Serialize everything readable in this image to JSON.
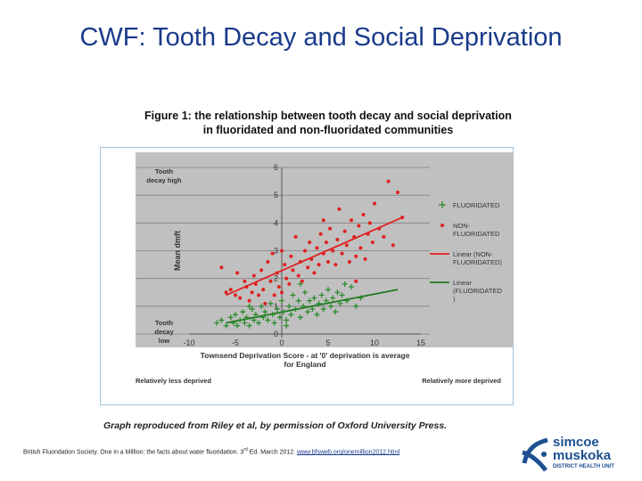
{
  "slide": {
    "title": "CWF: Tooth Decay and Social Deprivation",
    "figure_caption_line1": "Figure 1: the relationship between tooth decay and social deprivation",
    "figure_caption_line2": "in fluoridated and non-fluoridated communities",
    "credit": "Graph reproduced from Riley et al, by permission of Oxford University Press.",
    "source_text": "British Fluoridation Society. One in a Million: the facts about water fluoridation. 3",
    "source_sup": "rd",
    "source_text2": " Ed. March 2012. ",
    "source_link": "www.bfsweb.org/onemillion2012.html"
  },
  "logo": {
    "line1": "simcoe",
    "line2": "muskoka",
    "line3": "DISTRICT HEALTH UNIT",
    "color": "#1d4f91"
  },
  "chart_data": {
    "type": "scatter",
    "xlabel_line1": "Townsend Deprivation Score - at '0' deprivation is average",
    "xlabel_line2": "for England",
    "ylabel": "Mean dmft",
    "xlim": [
      -10,
      15
    ],
    "ylim": [
      0,
      6
    ],
    "xticks": [
      "-10",
      "-5",
      "0",
      "5",
      "10",
      "15"
    ],
    "yticks": [
      "0",
      "1",
      "2",
      "3",
      "4",
      "5",
      "6"
    ],
    "grid": true,
    "background": "#c0c0c0",
    "annotations": {
      "top_left_line1": "Tooth",
      "top_left_line2": "decay high",
      "bottom_left_line1": "Tooth",
      "bottom_left_line2": "decay",
      "bottom_left_line3": "low",
      "less_deprived": "Relatively less deprived",
      "more_deprived": "Relatively more deprived"
    },
    "legend_position": "right",
    "legend": [
      {
        "key": "fluoridated",
        "label_lines": [
          "FLUORIDATED"
        ],
        "color": "#2e8b2e",
        "marker": "plus"
      },
      {
        "key": "non_fluoridated",
        "label_lines": [
          "NON-",
          "FLUORIDATED"
        ],
        "color": "#e02020",
        "marker": "dot"
      },
      {
        "key": "linear_non",
        "label_lines": [
          "Linear (NON-",
          "FLUORIDATED)"
        ],
        "color": "#e02020",
        "marker": "line"
      },
      {
        "key": "linear_fl",
        "label_lines": [
          "Linear",
          "(FLUORIDATED",
          ")"
        ],
        "color": "#1f7a1f",
        "marker": "line"
      }
    ],
    "series": [
      {
        "name": "NON-FLUORIDATED",
        "color": "#e02020",
        "points": [
          [
            -6.5,
            2.4
          ],
          [
            -6,
            1.5
          ],
          [
            -5.5,
            1.6
          ],
          [
            -5,
            1.4
          ],
          [
            -4.8,
            2.2
          ],
          [
            -4.5,
            1.3
          ],
          [
            -4,
            1.9
          ],
          [
            -3.8,
            1.7
          ],
          [
            -3.5,
            1.2
          ],
          [
            -3.2,
            1.5
          ],
          [
            -3,
            2.1
          ],
          [
            -2.8,
            1.8
          ],
          [
            -2.5,
            1.4
          ],
          [
            -2.2,
            2.3
          ],
          [
            -2,
            1.6
          ],
          [
            -1.8,
            1.1
          ],
          [
            -1.5,
            2.6
          ],
          [
            -1.2,
            1.9
          ],
          [
            -1,
            2.9
          ],
          [
            -0.8,
            1.4
          ],
          [
            -0.5,
            2.2
          ],
          [
            -0.3,
            1.7
          ],
          [
            0,
            3.0
          ],
          [
            0,
            1.5
          ],
          [
            0.3,
            2.5
          ],
          [
            0.5,
            2.0
          ],
          [
            0.8,
            1.8
          ],
          [
            1,
            2.8
          ],
          [
            1.2,
            2.3
          ],
          [
            1.5,
            3.5
          ],
          [
            1.8,
            2.1
          ],
          [
            2,
            2.6
          ],
          [
            2.2,
            1.9
          ],
          [
            2.5,
            3.0
          ],
          [
            2.8,
            2.4
          ],
          [
            3,
            3.3
          ],
          [
            3.2,
            2.7
          ],
          [
            3.5,
            2.2
          ],
          [
            3.8,
            3.1
          ],
          [
            4,
            2.5
          ],
          [
            4.2,
            3.6
          ],
          [
            4.5,
            2.9
          ],
          [
            4.8,
            3.3
          ],
          [
            5,
            2.6
          ],
          [
            5.2,
            3.8
          ],
          [
            5.5,
            3.0
          ],
          [
            5.8,
            2.5
          ],
          [
            6,
            3.4
          ],
          [
            6.2,
            4.5
          ],
          [
            6.5,
            2.9
          ],
          [
            6.8,
            3.7
          ],
          [
            7,
            3.2
          ],
          [
            7.3,
            2.6
          ],
          [
            7.5,
            4.1
          ],
          [
            7.8,
            3.5
          ],
          [
            8,
            2.8
          ],
          [
            8.3,
            3.9
          ],
          [
            8.5,
            3.1
          ],
          [
            8.8,
            4.3
          ],
          [
            9,
            2.7
          ],
          [
            9.3,
            3.6
          ],
          [
            9.5,
            4.0
          ],
          [
            9.8,
            3.3
          ],
          [
            10,
            4.7
          ],
          [
            10.5,
            3.8
          ],
          [
            11,
            3.5
          ],
          [
            11.5,
            5.5
          ],
          [
            12,
            3.2
          ],
          [
            12.5,
            5.1
          ],
          [
            13,
            4.2
          ],
          [
            8,
            1.9
          ],
          [
            4.5,
            4.1
          ]
        ]
      },
      {
        "name": "FLUORIDATED",
        "color": "#2e8b2e",
        "points": [
          [
            -7,
            0.4
          ],
          [
            -6.5,
            0.5
          ],
          [
            -6,
            0.3
          ],
          [
            -5.5,
            0.6
          ],
          [
            -5.2,
            0.4
          ],
          [
            -5,
            0.7
          ],
          [
            -4.8,
            0.3
          ],
          [
            -4.5,
            0.5
          ],
          [
            -4.2,
            0.8
          ],
          [
            -4,
            0.4
          ],
          [
            -3.8,
            0.6
          ],
          [
            -3.5,
            0.3
          ],
          [
            -3.2,
            0.9
          ],
          [
            -3,
            0.5
          ],
          [
            -2.8,
            0.7
          ],
          [
            -2.5,
            0.4
          ],
          [
            -2.2,
            1.0
          ],
          [
            -2,
            0.6
          ],
          [
            -1.8,
            0.8
          ],
          [
            -1.5,
            0.5
          ],
          [
            -1.2,
            1.1
          ],
          [
            -1,
            0.7
          ],
          [
            -0.8,
            0.4
          ],
          [
            -0.5,
            0.9
          ],
          [
            -0.2,
            0.6
          ],
          [
            0,
            1.2
          ],
          [
            0.2,
            0.8
          ],
          [
            0.5,
            0.5
          ],
          [
            0.8,
            1.0
          ],
          [
            1,
            0.7
          ],
          [
            1.2,
            1.4
          ],
          [
            1.5,
            0.9
          ],
          [
            1.8,
            1.2
          ],
          [
            2,
            0.6
          ],
          [
            2.3,
            1.0
          ],
          [
            2.5,
            1.5
          ],
          [
            2.8,
            0.8
          ],
          [
            3,
            1.2
          ],
          [
            3.3,
            0.9
          ],
          [
            3.5,
            1.3
          ],
          [
            3.8,
            0.7
          ],
          [
            4,
            1.1
          ],
          [
            4.3,
            1.4
          ],
          [
            4.5,
            0.9
          ],
          [
            4.8,
            1.2
          ],
          [
            5,
            1.6
          ],
          [
            5.3,
            1.0
          ],
          [
            5.5,
            1.3
          ],
          [
            5.8,
            0.8
          ],
          [
            6,
            1.5
          ],
          [
            6.3,
            1.1
          ],
          [
            6.5,
            1.4
          ],
          [
            7,
            1.2
          ],
          [
            7.5,
            1.7
          ],
          [
            8,
            1.0
          ],
          [
            8.5,
            1.3
          ],
          [
            0.5,
            0.3
          ],
          [
            -3.5,
            1.0
          ],
          [
            2,
            1.8
          ],
          [
            6.8,
            1.8
          ]
        ]
      }
    ],
    "trendlines": [
      {
        "name": "Linear (NON-FLUORIDATED)",
        "color": "#e02020",
        "from": [
          -6,
          1.4
        ],
        "to": [
          13,
          4.2
        ]
      },
      {
        "name": "Linear (FLUORIDATED)",
        "color": "#1f7a1f",
        "from": [
          -6,
          0.4
        ],
        "to": [
          12.5,
          1.6
        ]
      }
    ]
  }
}
